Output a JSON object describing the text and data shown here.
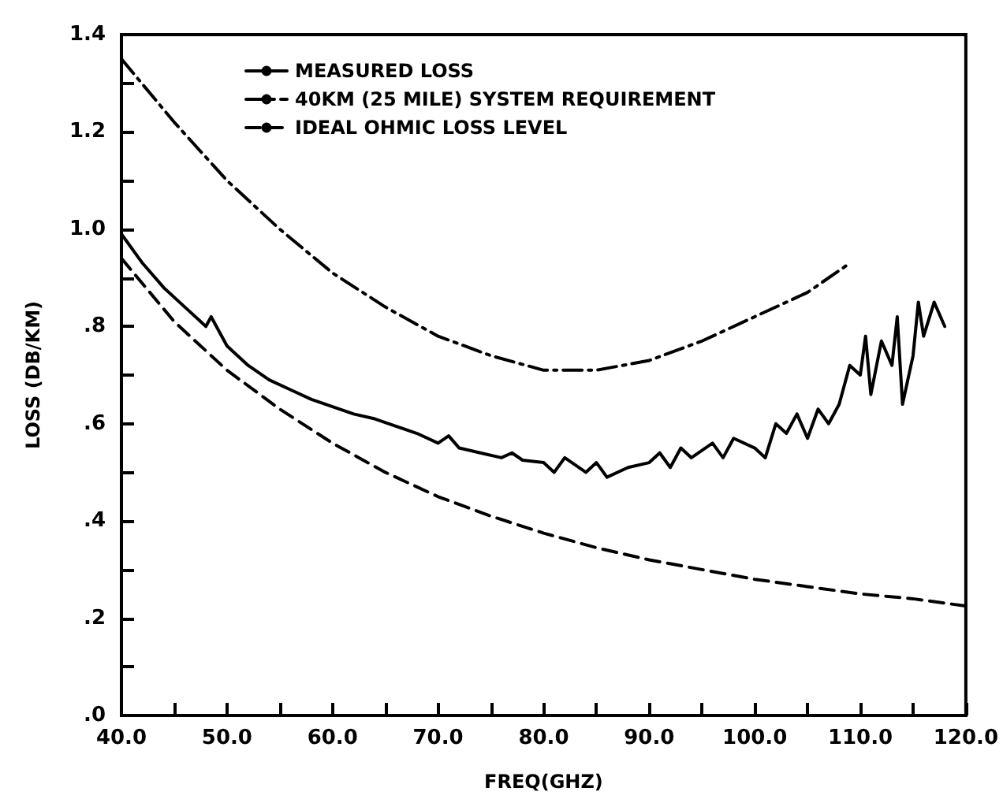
{
  "chart_data": {
    "type": "line",
    "xlabel": "FREQ(GHZ)",
    "ylabel": "LOSS (DB/KM)",
    "xlim": [
      40,
      120
    ],
    "ylim": [
      0,
      1.4
    ],
    "xticks": [
      {
        "value": 40,
        "label": "40.0"
      },
      {
        "value": 45,
        "label": null
      },
      {
        "value": 50,
        "label": "50.0"
      },
      {
        "value": 55,
        "label": null
      },
      {
        "value": 60,
        "label": "60.0"
      },
      {
        "value": 65,
        "label": null
      },
      {
        "value": 70,
        "label": "70.0"
      },
      {
        "value": 75,
        "label": null
      },
      {
        "value": 80,
        "label": "80.0"
      },
      {
        "value": 85,
        "label": null
      },
      {
        "value": 90,
        "label": "90.0"
      },
      {
        "value": 95,
        "label": null
      },
      {
        "value": 100,
        "label": "100.0"
      },
      {
        "value": 105,
        "label": null
      },
      {
        "value": 110,
        "label": "110.0"
      },
      {
        "value": 115,
        "label": null
      },
      {
        "value": 120,
        "label": "120.0"
      }
    ],
    "yticks": [
      {
        "value": 0,
        "label": ".0"
      },
      {
        "value": 0.1,
        "label": null
      },
      {
        "value": 0.2,
        "label": ".2"
      },
      {
        "value": 0.3,
        "label": null
      },
      {
        "value": 0.4,
        "label": ".4"
      },
      {
        "value": 0.5,
        "label": null
      },
      {
        "value": 0.6,
        "label": ".6"
      },
      {
        "value": 0.7,
        "label": null
      },
      {
        "value": 0.8,
        "label": ".8"
      },
      {
        "value": 0.9,
        "label": null
      },
      {
        "value": 1.0,
        "label": "1.0"
      },
      {
        "value": 1.1,
        "label": null
      },
      {
        "value": 1.2,
        "label": "1.2"
      },
      {
        "value": 1.3,
        "label": null
      },
      {
        "value": 1.4,
        "label": "1.4"
      }
    ],
    "grid": false,
    "legend": "top",
    "marker": "none",
    "series": [
      {
        "name": "MEASURED LOSS",
        "color": "#000000",
        "line_style": "solid",
        "x": [
          40,
          42,
          44,
          46,
          48,
          48.5,
          50,
          52,
          54,
          56,
          58,
          60,
          62,
          64,
          66,
          68,
          70,
          71,
          72,
          74,
          76,
          77,
          78,
          80,
          81,
          82,
          84,
          85,
          86,
          88,
          90,
          91,
          92,
          93,
          94,
          96,
          97,
          98,
          100,
          101,
          102,
          103,
          104,
          105,
          106,
          107,
          108,
          109,
          110,
          110.5,
          111,
          112,
          113,
          113.5,
          114,
          115,
          115.5,
          116,
          117,
          118
        ],
        "values": [
          0.99,
          0.93,
          0.88,
          0.84,
          0.8,
          0.82,
          0.76,
          0.72,
          0.69,
          0.67,
          0.65,
          0.635,
          0.62,
          0.61,
          0.595,
          0.58,
          0.56,
          0.575,
          0.55,
          0.54,
          0.53,
          0.54,
          0.525,
          0.52,
          0.5,
          0.53,
          0.5,
          0.52,
          0.49,
          0.51,
          0.52,
          0.54,
          0.51,
          0.55,
          0.53,
          0.56,
          0.53,
          0.57,
          0.55,
          0.53,
          0.6,
          0.58,
          0.62,
          0.57,
          0.63,
          0.6,
          0.64,
          0.72,
          0.7,
          0.78,
          0.66,
          0.77,
          0.72,
          0.82,
          0.64,
          0.74,
          0.85,
          0.78,
          0.85,
          0.8
        ]
      },
      {
        "name": "40KM (25 MILE) SYSTEM REQUIREMENT",
        "color": "#000000",
        "line_style": "dashdot",
        "x": [
          40,
          45,
          50,
          55,
          60,
          65,
          70,
          75,
          80,
          85,
          90,
          95,
          100,
          105,
          109
        ],
        "values": [
          1.35,
          1.22,
          1.1,
          1.0,
          0.91,
          0.84,
          0.78,
          0.74,
          0.71,
          0.71,
          0.73,
          0.77,
          0.82,
          0.87,
          0.93
        ]
      },
      {
        "name": "IDEAL OHMIC LOSS LEVEL",
        "color": "#000000",
        "line_style": "dashed",
        "x": [
          40,
          45,
          50,
          55,
          60,
          65,
          70,
          75,
          80,
          85,
          90,
          95,
          100,
          105,
          110,
          115,
          120
        ],
        "values": [
          0.94,
          0.81,
          0.71,
          0.63,
          0.56,
          0.5,
          0.45,
          0.41,
          0.375,
          0.345,
          0.32,
          0.3,
          0.28,
          0.265,
          0.25,
          0.24,
          0.225
        ]
      }
    ]
  }
}
